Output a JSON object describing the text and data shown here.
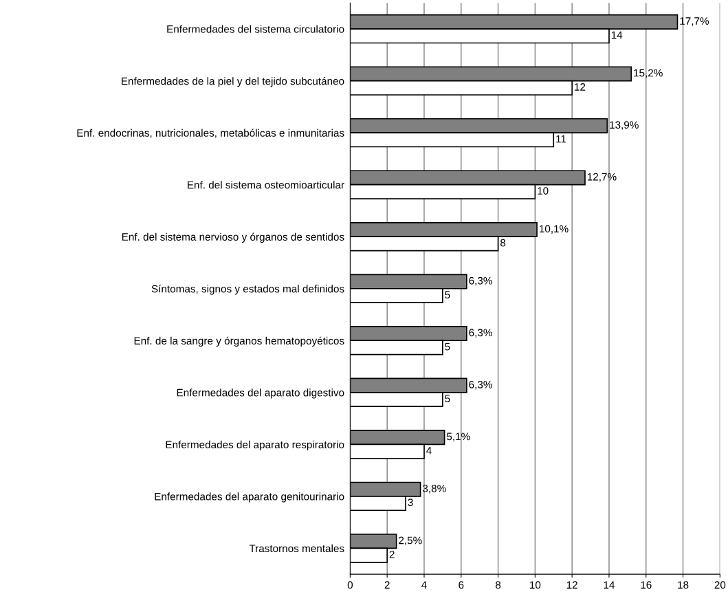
{
  "chart_data": {
    "type": "bar",
    "orientation": "horizontal",
    "categories": [
      "Enfermedades del sistema circulatorio",
      "Enfermedades de la piel y del tejido subcutáneo",
      "Enf. endocrinas, nutricionales, metabólicas e inmunitarias",
      "Enf. del sistema osteomioarticular",
      "Enf. del sistema nervioso y órganos de sentidos",
      "Síntomas, signos y estados mal definidos",
      "Enf. de la sangre y órganos hematopoyéticos",
      "Enfermedades del aparato digestivo",
      "Enfermedades del aparato respiratorio",
      "Enfermedades del aparato genitourinario",
      "Trastornos mentales"
    ],
    "series": [
      {
        "color": "#808080",
        "values": [
          17.7,
          15.2,
          13.9,
          12.7,
          10.1,
          6.3,
          6.3,
          6.3,
          5.1,
          3.8,
          2.5
        ],
        "value_labels": [
          "17,7%",
          "15,2%",
          "13,9%",
          "12,7%",
          "10,1%",
          "6,3%",
          "6,3%",
          "6,3%",
          "5,1%",
          "3,8%",
          "2,5%"
        ]
      },
      {
        "color": "#ffffff",
        "values": [
          14,
          12,
          11,
          10,
          8,
          5,
          5,
          5,
          4,
          3,
          2
        ],
        "value_labels": [
          "14",
          "12",
          "11",
          "10",
          "8",
          "5",
          "5",
          "5",
          "4",
          "3",
          "2"
        ]
      }
    ],
    "xlim": [
      0,
      20
    ],
    "xticks": [
      0,
      2,
      4,
      6,
      8,
      10,
      12,
      14,
      16,
      18,
      20
    ],
    "grid": "x",
    "legend": false
  }
}
